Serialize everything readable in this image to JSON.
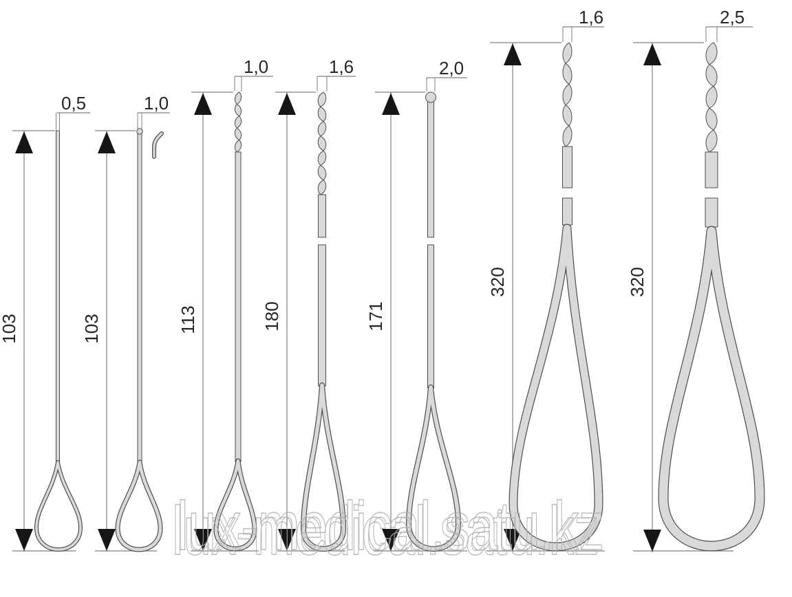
{
  "watermark": {
    "text": "lux-medical.satu.kz"
  },
  "diagram": {
    "kind": "bacteriological-loop-dimension-drawing",
    "instruments": [
      {
        "id": "loop-0-5",
        "kind": "straight-needle-loop",
        "diameter_label": "0,5",
        "length_label": "103"
      },
      {
        "id": "loop-1-0-ball",
        "kind": "ball-tip-needle-loop-bent-tip",
        "diameter_label": "1,0",
        "length_label": "103"
      },
      {
        "id": "loop-1-0-twisted",
        "kind": "twisted-shaft-loop",
        "diameter_label": "1,0",
        "length_label": "113"
      },
      {
        "id": "loop-1-6-twisted",
        "kind": "twisted-shaft-loop",
        "diameter_label": "1,6",
        "length_label": "180"
      },
      {
        "id": "loop-2-0-ball",
        "kind": "ball-tip-shaft-loop",
        "diameter_label": "2,0",
        "length_label": "171"
      },
      {
        "id": "loop-1-6-large",
        "kind": "twisted-shaft-large-loop",
        "diameter_label": "1,6",
        "length_label": "320"
      },
      {
        "id": "loop-2-5-large",
        "kind": "twisted-shaft-large-loop",
        "diameter_label": "2,5",
        "length_label": "320"
      }
    ]
  },
  "colors": {
    "background": "#ffffff",
    "metal_fill": "#d9d9d9",
    "metal_outline": "#4d4d4d",
    "dimension_line": "#7f7f7f",
    "arrow": "#161616",
    "label_text": "#262626",
    "watermark_outline": "#b0b0b0"
  }
}
